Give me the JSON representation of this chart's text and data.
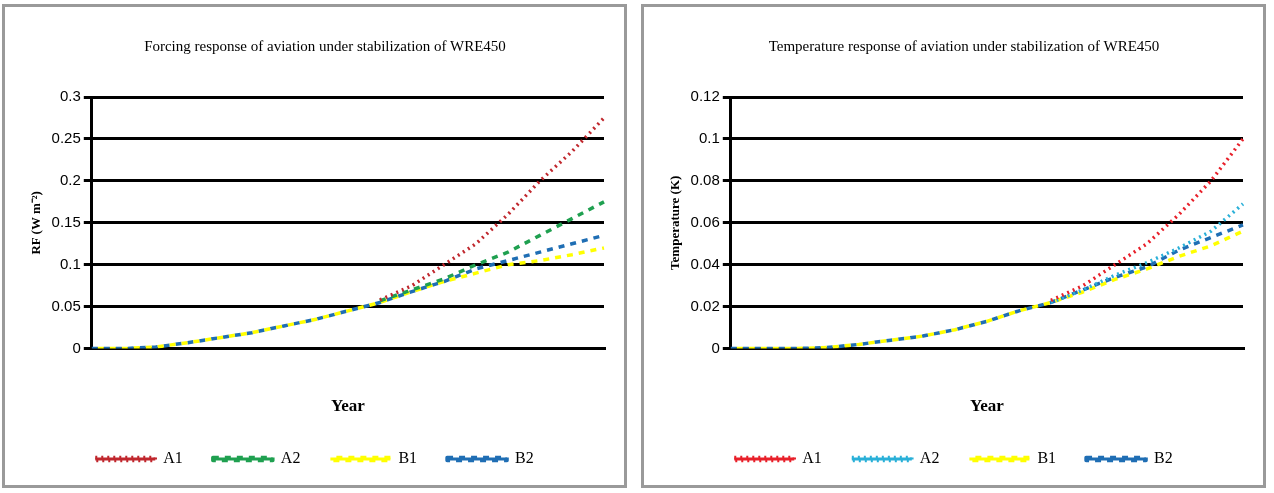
{
  "chart_data": [
    {
      "type": "line",
      "title": "Forcing response of aviation under stabilization of WRE450",
      "xlabel": "Year",
      "ylabel": "RF (W m⁻²)",
      "categories": [
        null,
        null,
        null,
        null,
        null,
        null,
        null,
        null,
        null,
        null,
        null,
        null,
        null,
        null,
        null,
        null,
        null
      ],
      "ylim": [
        0,
        0.3
      ],
      "yticks": [
        0,
        0.05,
        0.1,
        0.15,
        0.2,
        0.25,
        0.3
      ],
      "grid": "y",
      "legend": "bottom",
      "tick_labels": "y",
      "series": [
        {
          "name": "A1",
          "color": "#c0272d",
          "line_style": "dotted",
          "values": [
            null,
            null,
            null,
            null,
            null,
            null,
            null,
            null,
            null,
            0.058,
            0.075,
            0.1,
            0.125,
            0.16,
            0.2,
            0.235,
            0.275
          ]
        },
        {
          "name": "A2",
          "color": "#1fa050",
          "line_style": "dashed",
          "values": [
            null,
            null,
            null,
            null,
            null,
            null,
            null,
            null,
            null,
            0.057,
            0.07,
            0.083,
            0.1,
            0.115,
            0.135,
            0.155,
            0.175
          ]
        },
        {
          "name": "B1",
          "color": "#ffff00",
          "line_style": "dashed",
          "values": [
            0,
            0,
            0.002,
            0.007,
            0.013,
            0.019,
            0.027,
            0.035,
            0.045,
            0.055,
            0.068,
            0.08,
            0.09,
            0.1,
            0.105,
            0.112,
            0.12
          ]
        },
        {
          "name": "B2",
          "color": "#1f6eb4",
          "line_style": "dashed",
          "values": [
            0,
            0,
            0.002,
            0.007,
            0.013,
            0.019,
            0.027,
            0.035,
            0.045,
            0.055,
            0.068,
            0.08,
            0.095,
            0.105,
            0.115,
            0.125,
            0.135
          ]
        }
      ]
    },
    {
      "type": "line",
      "title": "Temperature response of aviation under stabilization of WRE450",
      "xlabel": "Year",
      "ylabel": "Temperature (K)",
      "categories": [
        null,
        null,
        null,
        null,
        null,
        null,
        null,
        null,
        null,
        null,
        null,
        null,
        null,
        null,
        null,
        null,
        null
      ],
      "ylim": [
        0,
        0.12
      ],
      "yticks": [
        0,
        0.02,
        0.04,
        0.06,
        0.08,
        0.1,
        0.12
      ],
      "grid": "y",
      "legend": "bottom",
      "tick_labels": "y",
      "series": [
        {
          "name": "A1",
          "color": "#e8202a",
          "line_style": "dotted",
          "values": [
            null,
            null,
            null,
            null,
            null,
            null,
            null,
            null,
            null,
            null,
            0.023,
            0.03,
            0.04,
            0.05,
            0.064,
            0.08,
            0.1
          ]
        },
        {
          "name": "A2",
          "color": "#2ab0d8",
          "line_style": "dotted",
          "values": [
            null,
            null,
            null,
            null,
            null,
            null,
            null,
            null,
            null,
            null,
            0.022,
            0.028,
            0.035,
            0.041,
            0.048,
            0.056,
            0.069
          ]
        },
        {
          "name": "B1",
          "color": "#ffff00",
          "line_style": "dashed",
          "values": [
            0,
            0,
            0,
            0.0005,
            0.002,
            0.004,
            0.006,
            0.009,
            0.013,
            0.018,
            0.022,
            0.027,
            0.033,
            0.038,
            0.044,
            0.049,
            0.056
          ]
        },
        {
          "name": "B2",
          "color": "#1f6eb4",
          "line_style": "dashed",
          "values": [
            0,
            0,
            0,
            0.0005,
            0.002,
            0.004,
            0.006,
            0.009,
            0.013,
            0.018,
            0.022,
            0.028,
            0.034,
            0.039,
            0.047,
            0.053,
            0.059
          ]
        }
      ]
    }
  ]
}
